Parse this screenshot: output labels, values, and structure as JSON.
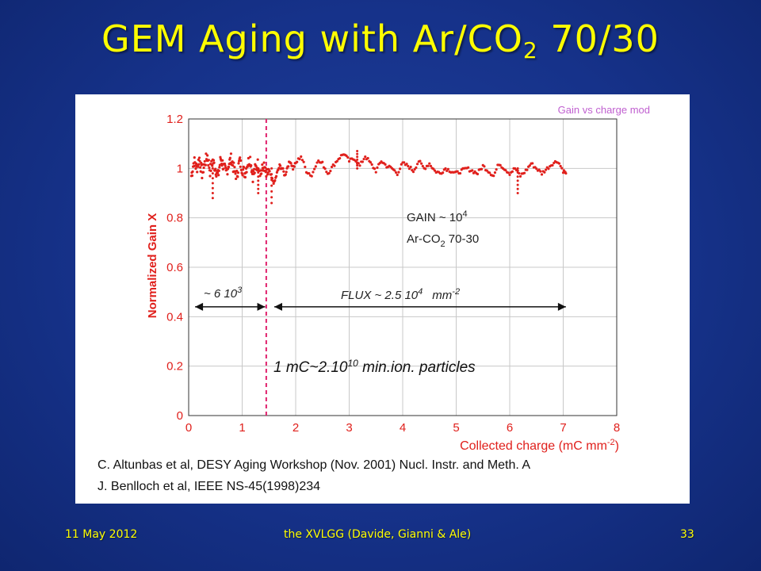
{
  "slide": {
    "title_main": "GEM Aging with Ar/CO",
    "title_sub": "2",
    "title_tail": " 70/30",
    "footer_date": "11 May 2012",
    "footer_center": "the XVLGG (Davide, Gianni & Ale)",
    "footer_page": "33",
    "refs": [
      "C. Altunbas et al, DESY Aging Workshop (Nov. 2001) Nucl. Instr. and Meth. A",
      "J. Benlloch et al, IEEE NS-45(1998)234"
    ],
    "colors": {
      "background": "#16328a",
      "title": "#ffff00",
      "data": "#e0201c",
      "axis_text": "#e0201c",
      "legend": "#c060d0"
    }
  },
  "chart_data": {
    "type": "scatter",
    "legend": "Gain vs charge mod",
    "xlabel_main": "Collected charge (mC mm",
    "xlabel_sup": "-2",
    "xlabel_tail": ")",
    "ylabel": "Normalized Gain X",
    "xlim": [
      0,
      8
    ],
    "ylim": [
      0,
      1.2
    ],
    "xticks": [
      "0",
      "1",
      "2",
      "3",
      "4",
      "5",
      "6",
      "7",
      "8"
    ],
    "yticks": [
      "0",
      "0.2",
      "0.4",
      "0.6",
      "0.8",
      "1",
      "1.2"
    ],
    "grid": true,
    "vline_x": 1.45,
    "annotations": {
      "gain_main": "GAIN ~ 10",
      "gain_sup": "4",
      "gas_main": "Ar-CO",
      "gas_sub": "2",
      "gas_tail": " 70-30",
      "left_main": "~ 6 10",
      "left_sup": "3",
      "flux_main": "FLUX ~ 2.5 10",
      "flux_sup": "4",
      "flux_unit": "mm",
      "flux_unit_sup": "-2",
      "conv_main": "1 mC~2.10",
      "conv_sup": "10",
      "conv_tail": " min.ion. particles"
    },
    "arrows": [
      {
        "x_start": 0.12,
        "x_end": 1.43,
        "y": 0.44
      },
      {
        "x_start": 1.6,
        "x_end": 7.05,
        "y": 0.44
      }
    ],
    "series": [
      {
        "x": [
          0.05,
          0.1,
          0.15,
          0.2,
          0.25,
          0.3,
          0.35,
          0.4,
          0.45,
          0.5,
          0.55,
          0.6,
          0.65,
          0.7,
          0.75,
          0.8,
          0.85,
          0.9,
          0.95,
          1.0,
          1.05,
          1.1,
          1.15,
          1.2,
          1.25,
          1.3,
          1.35,
          1.4,
          1.45,
          1.5,
          1.55,
          1.6,
          1.65,
          1.7,
          1.75,
          1.8,
          1.85,
          1.9,
          1.95,
          2.0,
          2.1,
          2.2,
          2.3,
          2.4,
          2.5,
          2.6,
          2.7,
          2.8,
          2.9,
          3.0,
          3.1,
          3.2,
          3.3,
          3.4,
          3.5,
          3.6,
          3.7,
          3.8,
          3.9,
          4.0,
          4.1,
          4.2,
          4.3,
          4.4,
          4.5,
          4.6,
          4.7,
          4.8,
          4.9,
          5.0,
          5.1,
          5.2,
          5.3,
          5.4,
          5.5,
          5.6,
          5.7,
          5.8,
          5.9,
          6.0,
          6.1,
          6.2,
          6.3,
          6.4,
          6.5,
          6.6,
          6.7,
          6.8,
          6.9,
          7.0,
          7.05
        ],
        "y": [
          0.97,
          1.03,
          1.0,
          1.04,
          0.98,
          1.02,
          1.05,
          0.99,
          1.03,
          1.0,
          0.97,
          1.04,
          1.01,
          0.98,
          1.02,
          1.04,
          0.99,
          0.97,
          1.03,
          1.0,
          0.98,
          1.02,
          1.04,
          0.97,
          1.0,
          1.02,
          0.98,
          1.01,
          0.97,
          0.99,
          0.96,
          0.94,
          0.98,
          1.01,
          1.0,
          0.97,
          1.01,
          1.03,
          1.0,
          1.02,
          1.05,
          0.99,
          0.97,
          1.03,
          1.02,
          0.98,
          1.01,
          1.04,
          1.06,
          1.03,
          1.04,
          1.01,
          1.05,
          1.02,
          0.99,
          1.03,
          1.01,
          1.0,
          0.98,
          1.02,
          1.01,
          0.99,
          1.03,
          1.0,
          1.02,
          0.99,
          0.98,
          1.0,
          0.99,
          0.98,
          0.99,
          1.0,
          0.99,
          0.98,
          1.01,
          0.99,
          0.97,
          1.02,
          1.0,
          0.98,
          1.0,
          0.97,
          0.99,
          1.02,
          1.0,
          0.98,
          1.0,
          1.02,
          1.03,
          0.99,
          0.98
        ]
      }
    ],
    "dips": [
      {
        "x": 0.45,
        "y": 0.88
      },
      {
        "x": 1.3,
        "y": 0.9
      },
      {
        "x": 1.55,
        "y": 0.86
      },
      {
        "x": 3.15,
        "y": 1.07
      },
      {
        "x": 6.15,
        "y": 0.9
      }
    ]
  }
}
